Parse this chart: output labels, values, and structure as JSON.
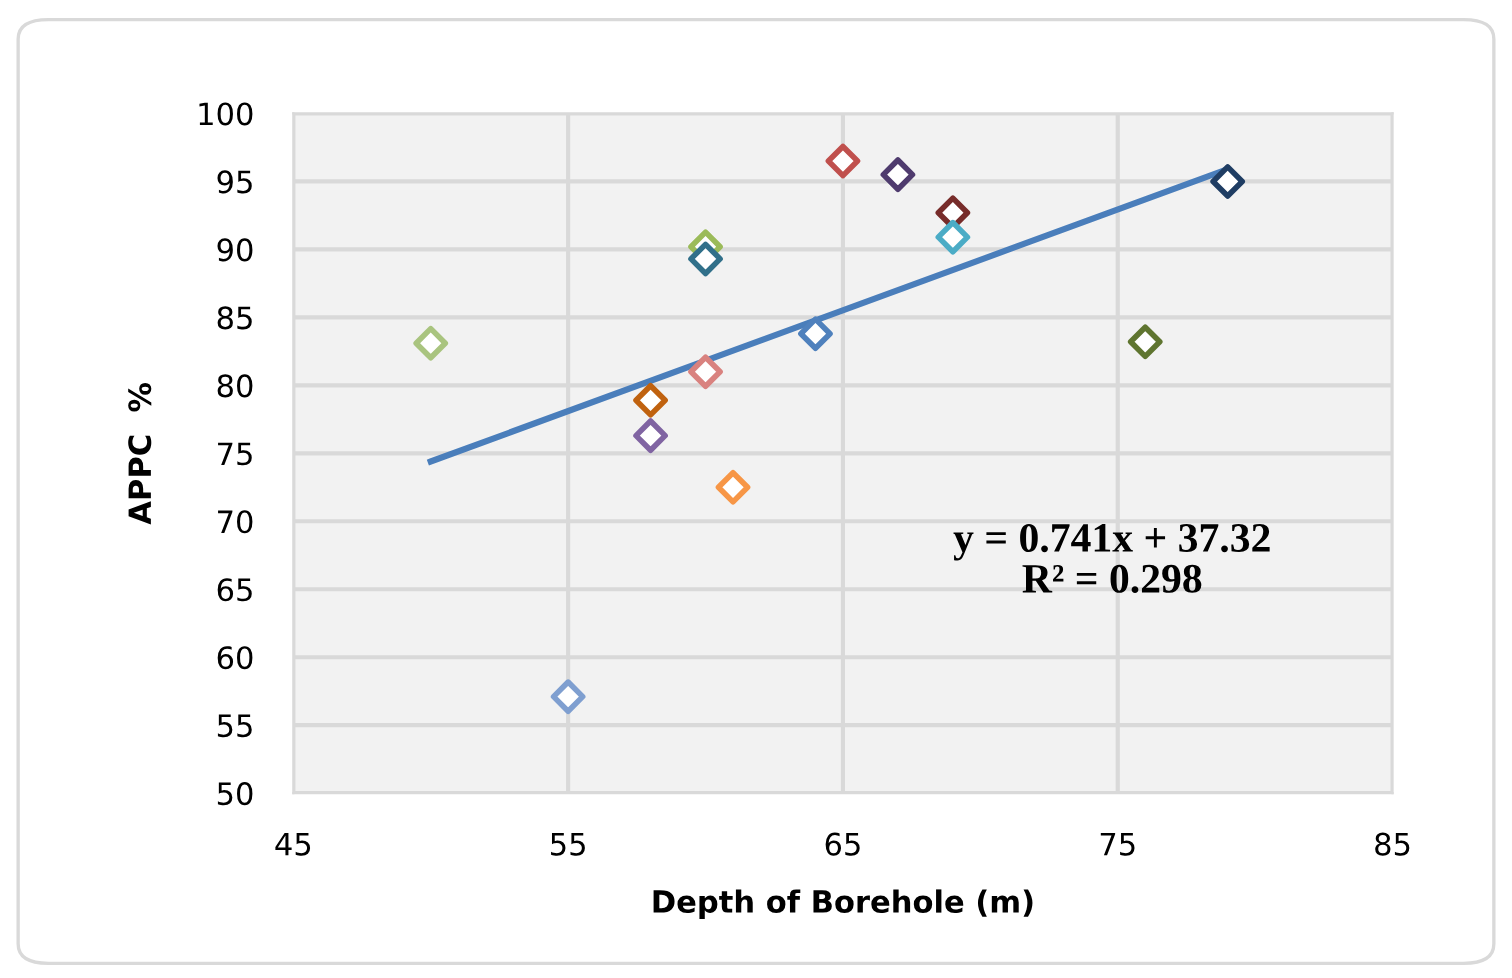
{
  "chart_data": {
    "type": "scatter",
    "xlabel": "Depth of Borehole (m)",
    "ylabel": "APPC  %",
    "xlim": [
      45,
      85
    ],
    "xticks": [
      45,
      55,
      65,
      75,
      85
    ],
    "ylim": [
      50,
      100
    ],
    "yticks": [
      50,
      55,
      60,
      65,
      70,
      75,
      80,
      85,
      90,
      95,
      100
    ],
    "grid": true,
    "series": [
      {
        "marker": "diamond",
        "x": [
          50,
          55,
          58,
          58,
          60,
          60,
          60,
          61,
          64,
          65,
          67,
          69,
          69,
          76,
          79
        ],
        "values": [
          83.1,
          57.1,
          76.3,
          78.9,
          81.0,
          90.2,
          89.3,
          72.5,
          83.8,
          96.5,
          95.5,
          92.7,
          90.9,
          83.2,
          95.0
        ],
        "colors": [
          "#a9c47f",
          "#7f9fd0",
          "#8064a2",
          "#c0620f",
          "#d9827f",
          "#9bbb59",
          "#31708a",
          "#f79646",
          "#4f81bd",
          "#c0504d",
          "#4f3b6e",
          "#772c2a",
          "#4bacc6",
          "#5f7530",
          "#1f3d63"
        ]
      },
      {
        "type": "line",
        "x": [
          50,
          79
        ],
        "values": [
          74.4,
          95.9
        ],
        "color": "#4a7ebb"
      }
    ],
    "annotations": [
      "y = 0.741x + 37.32\nR² = 0.298"
    ]
  }
}
